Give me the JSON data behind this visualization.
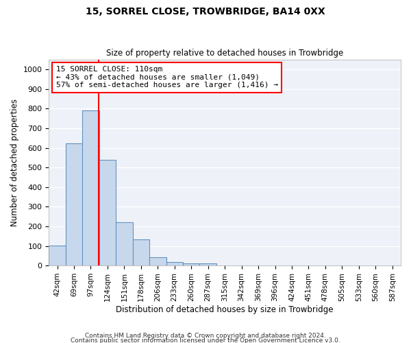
{
  "title1": "15, SORREL CLOSE, TROWBRIDGE, BA14 0XX",
  "title2": "Size of property relative to detached houses in Trowbridge",
  "xlabel": "Distribution of detached houses by size in Trowbridge",
  "ylabel": "Number of detached properties",
  "bar_color": "#c8d8ec",
  "bar_edge_color": "#6090c0",
  "bg_color": "#eef2f8",
  "grid_color": "#ffffff",
  "categories": [
    "42sqm",
    "69sqm",
    "97sqm",
    "124sqm",
    "151sqm",
    "178sqm",
    "206sqm",
    "233sqm",
    "260sqm",
    "287sqm",
    "315sqm",
    "342sqm",
    "369sqm",
    "396sqm",
    "424sqm",
    "451sqm",
    "478sqm",
    "505sqm",
    "533sqm",
    "560sqm",
    "587sqm"
  ],
  "values": [
    102,
    625,
    790,
    540,
    220,
    135,
    42,
    17,
    10,
    10,
    0,
    0,
    0,
    0,
    0,
    0,
    0,
    0,
    0,
    0,
    0
  ],
  "ylim": [
    0,
    1050
  ],
  "yticks": [
    0,
    100,
    200,
    300,
    400,
    500,
    600,
    700,
    800,
    900,
    1000
  ],
  "red_line_x": 2.48,
  "annotation_line1": "15 SORREL CLOSE: 110sqm",
  "annotation_line2": "← 43% of detached houses are smaller (1,049)",
  "annotation_line3": "57% of semi-detached houses are larger (1,416) →",
  "footnote1": "Contains HM Land Registry data © Crown copyright and database right 2024.",
  "footnote2": "Contains public sector information licensed under the Open Government Licence v3.0."
}
